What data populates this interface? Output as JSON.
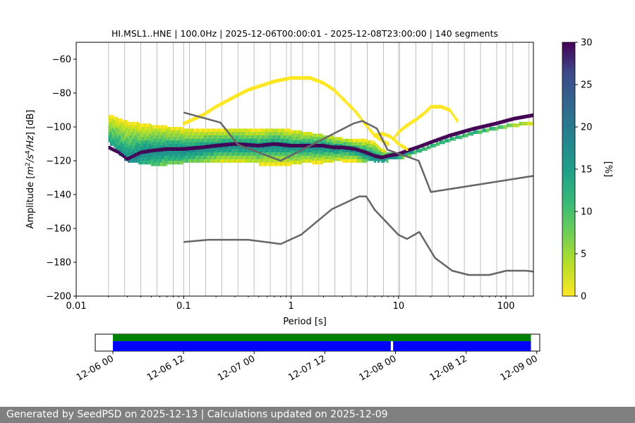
{
  "chart_data": [
    {
      "type": "heatmap",
      "title": "HI.MSL1..HNE | 100.0Hz | 2025-12-06T00:00:01 - 2025-12-08T23:00:00 | 140 segments",
      "xlabel": "Period [s]",
      "ylabel_parts": [
        "Amplitude [",
        "m",
        "2",
        "/",
        "s",
        "4",
        "/",
        "Hz",
        "] [dB]"
      ],
      "x_scale": "log",
      "xlim": [
        0.01,
        180
      ],
      "ylim": [
        -200,
        -50
      ],
      "x_ticks": [
        {
          "value": 0.01,
          "label": "0.01"
        },
        {
          "value": 0.1,
          "label": "0.1"
        },
        {
          "value": 1,
          "label": "1"
        },
        {
          "value": 10,
          "label": "10"
        },
        {
          "value": 100,
          "label": "100"
        }
      ],
      "y_ticks": [
        {
          "value": -60,
          "label": "−60"
        },
        {
          "value": -80,
          "label": "−80"
        },
        {
          "value": -100,
          "label": "−100"
        },
        {
          "value": -120,
          "label": "−120"
        },
        {
          "value": -140,
          "label": "−140"
        },
        {
          "value": -160,
          "label": "−160"
        },
        {
          "value": -180,
          "label": "−180"
        },
        {
          "value": -200,
          "label": "−200"
        }
      ],
      "grid": "vertical",
      "colormap": "viridis_r",
      "colorbar": {
        "label": "[%]",
        "range": [
          0,
          30
        ],
        "ticks": [
          {
            "value": 0,
            "label": "0"
          },
          {
            "value": 5,
            "label": "5"
          },
          {
            "value": 10,
            "label": "10"
          },
          {
            "value": 15,
            "label": "15"
          },
          {
            "value": 20,
            "label": "20"
          },
          {
            "value": 25,
            "label": "25"
          },
          {
            "value": 30,
            "label": "30"
          }
        ]
      },
      "psd_mode": {
        "x": [
          0.02,
          0.025,
          0.03,
          0.04,
          0.05,
          0.07,
          0.1,
          0.15,
          0.2,
          0.3,
          0.5,
          0.7,
          1,
          1.5,
          2,
          2.5,
          3,
          4,
          5,
          6,
          7,
          8,
          10,
          12,
          15,
          20,
          30,
          50,
          80,
          120,
          180
        ],
        "y": [
          -112,
          -115,
          -119,
          -115,
          -114,
          -113,
          -113,
          -112,
          -111,
          -110,
          -111,
          -110,
          -111,
          -111,
          -111,
          -112,
          -112,
          -113,
          -115,
          -117,
          -118,
          -117,
          -116,
          -114,
          -112,
          -109,
          -105,
          -101,
          -98,
          -95,
          -93
        ]
      },
      "psd_spread": [
        {
          "x": [
            0.02,
            0.03,
            0.05,
            0.1,
            0.2,
            0.5,
            1,
            2,
            3,
            4,
            5,
            6,
            7,
            8,
            10,
            15,
            20,
            30,
            50,
            100,
            180
          ],
          "y": [
            -92,
            -96,
            -98,
            -100,
            -101,
            -101,
            -101,
            -104,
            -106,
            -107,
            -107,
            -108,
            -112,
            -115,
            -115,
            -113,
            -110,
            -106,
            -102,
            -98,
            -96
          ]
        },
        {
          "x": [
            0.02,
            0.03,
            0.05,
            0.1,
            0.2,
            0.5,
            1,
            2,
            3,
            4,
            5,
            6,
            7,
            8,
            10,
            15,
            20,
            30,
            50,
            100,
            180
          ],
          "y": [
            -108,
            -120,
            -122,
            -121,
            -120,
            -121,
            -121,
            -120,
            -119,
            -119,
            -119,
            -119,
            -119,
            -119,
            -118,
            -115,
            -112,
            -108,
            -104,
            -100,
            -97
          ]
        }
      ],
      "psd_outliers": [
        {
          "x": [
            0.1,
            0.15,
            0.2,
            0.3,
            0.4,
            0.5,
            0.7,
            1,
            1.5,
            2,
            2.5,
            3,
            4,
            5,
            6,
            7,
            8
          ],
          "y": [
            -97,
            -92,
            -87,
            -81,
            -77,
            -75,
            -72,
            -70,
            -70,
            -73,
            -77,
            -82,
            -90,
            -98,
            -104,
            -107,
            -109
          ]
        },
        {
          "x": [
            9,
            10,
            12,
            15,
            18,
            20,
            25,
            30,
            35
          ],
          "y": [
            -106,
            -102,
            -98,
            -94,
            -90,
            -87,
            -87,
            -89,
            -95
          ]
        },
        {
          "x": [
            6,
            7,
            8,
            9,
            10,
            12
          ],
          "y": [
            -104,
            -103,
            -104,
            -106,
            -109,
            -112
          ]
        }
      ],
      "noise_models": [
        {
          "name": "high-noise model",
          "x": [
            0.1,
            0.22,
            0.32,
            0.8,
            3.8,
            4.6,
            6.3,
            7.9,
            15.4,
            20,
            354.8
          ],
          "y": [
            -91.5,
            -97.4,
            -110.5,
            -120,
            -98,
            -96.5,
            -101,
            -113.5,
            -120,
            -138.5,
            -126
          ]
        },
        {
          "name": "low-noise model",
          "x": [
            0.1,
            0.17,
            0.4,
            0.8,
            1.24,
            2.4,
            4.3,
            5,
            6,
            10,
            12,
            15.6,
            21.9,
            31.6,
            45,
            70,
            101,
            154,
            328
          ],
          "y": [
            -168,
            -166.7,
            -166.7,
            -169.2,
            -163.7,
            -148.6,
            -141.1,
            -141.1,
            -149,
            -163.8,
            -166.2,
            -162.1,
            -177.5,
            -185,
            -187.5,
            -187.5,
            -185,
            -185,
            -187.5
          ]
        }
      ]
    },
    {
      "type": "timeline",
      "x_ticks": [
        "12-06 00",
        "12-06 12",
        "12-07 00",
        "12-07 12",
        "12-08 00",
        "12-08 12",
        "12-09 00"
      ],
      "x_range_hours": [
        -3,
        72.5
      ],
      "data_span_hours": [
        0,
        71
      ],
      "segments_hours": [
        [
          0,
          47.2
        ],
        [
          47.6,
          71
        ]
      ],
      "colors": {
        "availability": "#008000",
        "segments": "#0000ff"
      }
    }
  ],
  "footer": {
    "text": "Generated by SeedPSD on 2025-12-13 | Calculations updated on 2025-12-09"
  }
}
